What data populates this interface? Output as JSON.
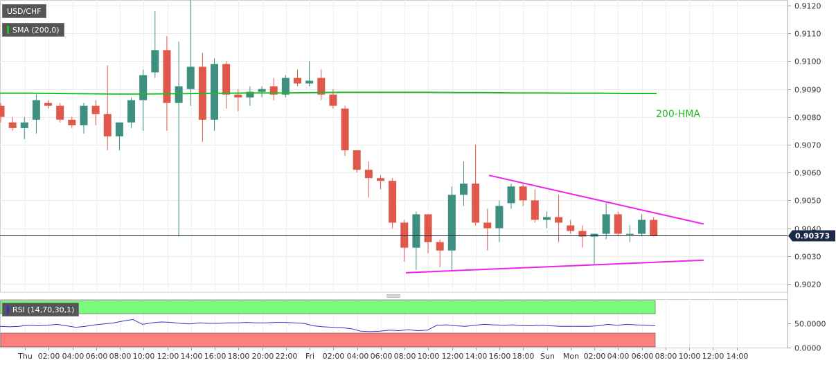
{
  "header": {
    "symbol": "USD/CHF",
    "indicator": "SMA (200,0)"
  },
  "price_tag": "0.90373",
  "annotations": {
    "hma_label": "200-HMA"
  },
  "rsi_panel": {
    "label": "RSI (14,70,30,1)",
    "ticks": [
      "50.0000",
      "0.0000"
    ],
    "overbought": 70,
    "oversold": 30,
    "overbought_color": "#7cfc7c",
    "oversold_color": "#ff7f7f",
    "line_color": "#3333cc",
    "values": [
      44,
      43,
      44,
      46,
      45,
      46,
      48,
      45,
      42,
      44,
      47,
      49,
      51,
      55,
      58,
      48,
      51,
      53,
      52,
      50,
      49,
      51,
      50,
      50,
      51,
      51,
      52,
      51,
      51,
      52,
      52,
      51,
      50,
      45,
      43,
      42,
      41,
      39,
      34,
      33,
      34,
      36,
      35,
      37,
      35,
      36,
      46,
      47,
      45,
      44,
      46,
      48,
      47,
      46,
      47,
      45,
      45,
      46,
      45,
      44,
      44,
      44,
      44,
      45,
      48,
      46,
      48,
      47,
      46,
      45
    ]
  },
  "chart_data": {
    "type": "candlestick",
    "title": "USD/CHF",
    "ylim": [
      0.9017,
      0.9122
    ],
    "yticks": [
      "0.9020",
      "0.9030",
      "0.9040",
      "0.9050",
      "0.9060",
      "0.9070",
      "0.9080",
      "0.9090",
      "0.9100",
      "0.9110",
      "0.9120"
    ],
    "x_ticks": [
      "Thu",
      "02:00",
      "04:00",
      "06:00",
      "08:00",
      "10:00",
      "12:00",
      "14:00",
      "16:00",
      "18:00",
      "20:00",
      "22:00",
      "Fri",
      "02:00",
      "04:00",
      "06:00",
      "08:00",
      "10:00",
      "12:00",
      "14:00",
      "16:00",
      "18:00",
      "Sun",
      "Mon",
      "02:00",
      "04:00",
      "06:00",
      "08:00",
      "10:00",
      "12:00",
      "14:00"
    ],
    "last_price": 0.90373,
    "up_color": "#3d8f80",
    "down_color": "#e0584b",
    "candles": [
      {
        "o": 0.9084,
        "h": 0.9085,
        "l": 0.9078,
        "c": 0.908
      },
      {
        "o": 0.9078,
        "h": 0.908,
        "l": 0.9075,
        "c": 0.9076
      },
      {
        "o": 0.9076,
        "h": 0.908,
        "l": 0.9072,
        "c": 0.9078
      },
      {
        "o": 0.9079,
        "h": 0.9088,
        "l": 0.9074,
        "c": 0.9086
      },
      {
        "o": 0.9085,
        "h": 0.9086,
        "l": 0.9083,
        "c": 0.9084
      },
      {
        "o": 0.9084,
        "h": 0.9085,
        "l": 0.9078,
        "c": 0.9079
      },
      {
        "o": 0.9079,
        "h": 0.908,
        "l": 0.9076,
        "c": 0.9077
      },
      {
        "o": 0.9077,
        "h": 0.9085,
        "l": 0.9074,
        "c": 0.9084
      },
      {
        "o": 0.9084,
        "h": 0.9086,
        "l": 0.9077,
        "c": 0.9081
      },
      {
        "o": 0.9081,
        "h": 0.90985,
        "l": 0.9068,
        "c": 0.9073
      },
      {
        "o": 0.9073,
        "h": 0.9078,
        "l": 0.9068,
        "c": 0.9078
      },
      {
        "o": 0.9078,
        "h": 0.9087,
        "l": 0.9076,
        "c": 0.9086
      },
      {
        "o": 0.9086,
        "h": 0.9097,
        "l": 0.9075,
        "c": 0.9095
      },
      {
        "o": 0.9096,
        "h": 0.9118,
        "l": 0.9094,
        "c": 0.9104
      },
      {
        "o": 0.9104,
        "h": 0.9109,
        "l": 0.9075,
        "c": 0.9085
      },
      {
        "o": 0.9085,
        "h": 0.9107,
        "l": 0.9037,
        "c": 0.9091
      },
      {
        "o": 0.909,
        "h": 0.9123,
        "l": 0.9084,
        "c": 0.9098
      },
      {
        "o": 0.9098,
        "h": 0.9103,
        "l": 0.9071,
        "c": 0.9079
      },
      {
        "o": 0.9079,
        "h": 0.9101,
        "l": 0.9075,
        "c": 0.9099
      },
      {
        "o": 0.9099,
        "h": 0.91,
        "l": 0.9083,
        "c": 0.9088
      },
      {
        "o": 0.9088,
        "h": 0.909,
        "l": 0.9082,
        "c": 0.9087
      },
      {
        "o": 0.9087,
        "h": 0.9091,
        "l": 0.9084,
        "c": 0.9089
      },
      {
        "o": 0.9089,
        "h": 0.9091,
        "l": 0.9087,
        "c": 0.909
      },
      {
        "o": 0.9091,
        "h": 0.9094,
        "l": 0.9086,
        "c": 0.9088
      },
      {
        "o": 0.9088,
        "h": 0.9095,
        "l": 0.9087,
        "c": 0.9094
      },
      {
        "o": 0.9094,
        "h": 0.9097,
        "l": 0.9091,
        "c": 0.9092
      },
      {
        "o": 0.9092,
        "h": 0.91,
        "l": 0.9091,
        "c": 0.9093
      },
      {
        "o": 0.9094,
        "h": 0.9097,
        "l": 0.9086,
        "c": 0.9088
      },
      {
        "o": 0.9088,
        "h": 0.909,
        "l": 0.9083,
        "c": 0.9084
      },
      {
        "o": 0.9083,
        "h": 0.9084,
        "l": 0.9066,
        "c": 0.9068
      },
      {
        "o": 0.9068,
        "h": 0.9068,
        "l": 0.906,
        "c": 0.9061
      },
      {
        "o": 0.9061,
        "h": 0.9064,
        "l": 0.9051,
        "c": 0.9058
      },
      {
        "o": 0.9058,
        "h": 0.9059,
        "l": 0.9054,
        "c": 0.9057
      },
      {
        "o": 0.9057,
        "h": 0.9058,
        "l": 0.904,
        "c": 0.9042
      },
      {
        "o": 0.9042,
        "h": 0.9043,
        "l": 0.9028,
        "c": 0.9033
      },
      {
        "o": 0.9033,
        "h": 0.9046,
        "l": 0.9025,
        "c": 0.9045
      },
      {
        "o": 0.9045,
        "h": 0.9045,
        "l": 0.9031,
        "c": 0.9035
      },
      {
        "o": 0.9035,
        "h": 0.9036,
        "l": 0.9026,
        "c": 0.9032
      },
      {
        "o": 0.9032,
        "h": 0.9055,
        "l": 0.9025,
        "c": 0.9052
      },
      {
        "o": 0.9052,
        "h": 0.9064,
        "l": 0.9048,
        "c": 0.9056
      },
      {
        "o": 0.9056,
        "h": 0.907,
        "l": 0.9041,
        "c": 0.9042
      },
      {
        "o": 0.9042,
        "h": 0.9047,
        "l": 0.9032,
        "c": 0.904
      },
      {
        "o": 0.904,
        "h": 0.905,
        "l": 0.9035,
        "c": 0.9048
      },
      {
        "o": 0.9049,
        "h": 0.9056,
        "l": 0.9047,
        "c": 0.9055
      },
      {
        "o": 0.9055,
        "h": 0.9056,
        "l": 0.9048,
        "c": 0.905
      },
      {
        "o": 0.905,
        "h": 0.9054,
        "l": 0.9042,
        "c": 0.9043
      },
      {
        "o": 0.9043,
        "h": 0.9046,
        "l": 0.904,
        "c": 0.9044
      },
      {
        "o": 0.9044,
        "h": 0.9052,
        "l": 0.9035,
        "c": 0.9042
      },
      {
        "o": 0.9041,
        "h": 0.9043,
        "l": 0.9038,
        "c": 0.9039
      },
      {
        "o": 0.9039,
        "h": 0.9041,
        "l": 0.9033,
        "c": 0.9037
      },
      {
        "o": 0.9037,
        "h": 0.9038,
        "l": 0.9027,
        "c": 0.9038
      },
      {
        "o": 0.9038,
        "h": 0.9049,
        "l": 0.9036,
        "c": 0.9045
      },
      {
        "o": 0.9045,
        "h": 0.9046,
        "l": 0.9037,
        "c": 0.9038
      },
      {
        "o": 0.9038,
        "h": 0.9041,
        "l": 0.9035,
        "c": 0.9038
      },
      {
        "o": 0.9038,
        "h": 0.9045,
        "l": 0.9037,
        "c": 0.9043
      },
      {
        "o": 0.9043,
        "h": 0.9044,
        "l": 0.9037,
        "c": 0.90373
      }
    ],
    "hma_line": [
      0.90885,
      0.90885,
      0.90884,
      0.90883,
      0.90882,
      0.90882,
      0.90883,
      0.90884,
      0.90885,
      0.90886,
      0.90886,
      0.90887,
      0.90888,
      0.90888,
      0.90888,
      0.90888,
      0.90887,
      0.90887,
      0.90886,
      0.90886,
      0.90885,
      0.90885,
      0.90884,
      0.90884
    ],
    "hma_color": "#22bb22",
    "trendlines": {
      "color": "#ee22ee",
      "resistance": [
        0.9059,
        0.90415
      ],
      "support": [
        0.9024,
        0.90285
      ]
    },
    "legend": [
      "SMA (200,0)"
    ]
  }
}
